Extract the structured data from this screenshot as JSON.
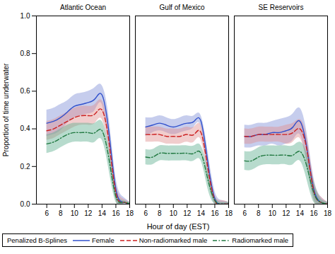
{
  "chart_data": {
    "type": "line",
    "xlabel": "Hour of day (EST)",
    "ylabel": "Proportion of time underwater",
    "legend_title": "Penalized B-Splines",
    "legend": "lower left",
    "grid": false,
    "xlim": [
      4.5,
      18.0
    ],
    "xticks": [
      6,
      8,
      10,
      12,
      14,
      16,
      18
    ],
    "ylim": [
      0.0,
      1.0
    ],
    "yticks": [
      {
        "value": 0.0,
        "label": "0.0"
      },
      {
        "value": 0.2,
        "label": "0.2"
      },
      {
        "value": 0.4,
        "label": "0.4"
      },
      {
        "value": 0.6,
        "label": "0.6"
      },
      {
        "value": 0.8,
        "label": "0.8"
      },
      {
        "value": 1.0,
        "label": "1.0"
      }
    ],
    "x": [
      6,
      7,
      8,
      9,
      10,
      11,
      12,
      13,
      14,
      15,
      16,
      17,
      18
    ],
    "panels": [
      {
        "title": "Atlantic Ocean",
        "series": [
          {
            "name": "Female",
            "color": "#3050cc",
            "band_color": "#8090d8",
            "line_style": "solid",
            "values": [
              0.43,
              0.44,
              0.46,
              0.49,
              0.52,
              0.53,
              0.54,
              0.56,
              0.58,
              0.38,
              0.08,
              0.01,
              0.0
            ],
            "upper": [
              0.5,
              0.51,
              0.53,
              0.55,
              0.58,
              0.59,
              0.6,
              0.62,
              0.63,
              0.46,
              0.14,
              0.04,
              0.01
            ],
            "lower": [
              0.36,
              0.37,
              0.39,
              0.43,
              0.46,
              0.47,
              0.48,
              0.5,
              0.53,
              0.3,
              0.03,
              0.0,
              0.0
            ]
          },
          {
            "name": "Non-radiomarked male",
            "color": "#cc2020",
            "band_color": "#e09090",
            "line_style": "dashed",
            "values": [
              0.39,
              0.4,
              0.42,
              0.44,
              0.46,
              0.47,
              0.47,
              0.48,
              0.5,
              0.33,
              0.06,
              0.01,
              0.0
            ],
            "upper": [
              0.44,
              0.45,
              0.47,
              0.49,
              0.51,
              0.52,
              0.52,
              0.53,
              0.55,
              0.39,
              0.11,
              0.03,
              0.01
            ],
            "lower": [
              0.34,
              0.35,
              0.37,
              0.39,
              0.41,
              0.42,
              0.42,
              0.43,
              0.45,
              0.27,
              0.02,
              0.0,
              0.0
            ]
          },
          {
            "name": "Radiomarked male",
            "color": "#207840",
            "band_color": "#60b090",
            "line_style": "dashdot",
            "values": [
              0.32,
              0.33,
              0.35,
              0.37,
              0.38,
              0.38,
              0.38,
              0.38,
              0.39,
              0.24,
              0.04,
              0.01,
              0.0
            ],
            "upper": [
              0.37,
              0.38,
              0.4,
              0.42,
              0.43,
              0.43,
              0.43,
              0.43,
              0.44,
              0.3,
              0.08,
              0.02,
              0.01
            ],
            "lower": [
              0.27,
              0.28,
              0.3,
              0.32,
              0.33,
              0.33,
              0.33,
              0.33,
              0.34,
              0.18,
              0.01,
              0.0,
              0.0
            ]
          }
        ]
      },
      {
        "title": "Gulf of Mexico",
        "series": [
          {
            "name": "Female",
            "color": "#3050cc",
            "band_color": "#8090d8",
            "line_style": "solid",
            "values": [
              0.41,
              0.42,
              0.43,
              0.42,
              0.41,
              0.42,
              0.43,
              0.44,
              0.44,
              0.22,
              0.03,
              0.0,
              0.0
            ],
            "upper": [
              0.46,
              0.46,
              0.47,
              0.46,
              0.45,
              0.46,
              0.47,
              0.47,
              0.47,
              0.28,
              0.07,
              0.02,
              0.01
            ],
            "lower": [
              0.36,
              0.38,
              0.39,
              0.38,
              0.37,
              0.38,
              0.39,
              0.41,
              0.41,
              0.16,
              0.0,
              0.0,
              0.0
            ]
          },
          {
            "name": "Non-radiomarked male",
            "color": "#cc2020",
            "band_color": "#e09090",
            "line_style": "dashed",
            "values": [
              0.37,
              0.37,
              0.37,
              0.36,
              0.36,
              0.36,
              0.37,
              0.37,
              0.38,
              0.19,
              0.02,
              0.0,
              0.0
            ],
            "upper": [
              0.41,
              0.41,
              0.41,
              0.4,
              0.4,
              0.4,
              0.41,
              0.41,
              0.42,
              0.24,
              0.05,
              0.02,
              0.01
            ],
            "lower": [
              0.33,
              0.33,
              0.33,
              0.32,
              0.32,
              0.32,
              0.33,
              0.33,
              0.34,
              0.14,
              0.0,
              0.0,
              0.0
            ]
          },
          {
            "name": "Radiomarked male",
            "color": "#207840",
            "band_color": "#60b090",
            "line_style": "dashdot",
            "values": [
              0.25,
              0.25,
              0.27,
              0.27,
              0.27,
              0.27,
              0.27,
              0.27,
              0.27,
              0.13,
              0.02,
              0.0,
              0.0
            ],
            "upper": [
              0.29,
              0.29,
              0.31,
              0.31,
              0.31,
              0.31,
              0.31,
              0.31,
              0.31,
              0.18,
              0.04,
              0.01,
              0.01
            ],
            "lower": [
              0.21,
              0.21,
              0.23,
              0.23,
              0.23,
              0.23,
              0.23,
              0.23,
              0.23,
              0.08,
              0.0,
              0.0,
              0.0
            ]
          }
        ]
      },
      {
        "title": "SE Reservoirs",
        "series": [
          {
            "name": "Female",
            "color": "#3050cc",
            "band_color": "#8090d8",
            "line_style": "solid",
            "values": [
              0.36,
              0.36,
              0.37,
              0.37,
              0.38,
              0.38,
              0.39,
              0.41,
              0.44,
              0.3,
              0.08,
              0.01,
              0.0
            ],
            "upper": [
              0.42,
              0.42,
              0.43,
              0.43,
              0.44,
              0.45,
              0.46,
              0.48,
              0.51,
              0.38,
              0.14,
              0.04,
              0.01
            ],
            "lower": [
              0.3,
              0.3,
              0.31,
              0.31,
              0.32,
              0.31,
              0.32,
              0.34,
              0.37,
              0.22,
              0.03,
              0.0,
              0.0
            ]
          },
          {
            "name": "Non-radiomarked male",
            "color": "#cc2020",
            "band_color": "#e09090",
            "line_style": "dashed",
            "values": [
              0.36,
              0.36,
              0.37,
              0.37,
              0.37,
              0.37,
              0.37,
              0.38,
              0.4,
              0.29,
              0.07,
              0.01,
              0.0
            ],
            "upper": [
              0.4,
              0.4,
              0.41,
              0.41,
              0.41,
              0.41,
              0.42,
              0.43,
              0.45,
              0.36,
              0.13,
              0.04,
              0.01
            ],
            "lower": [
              0.32,
              0.32,
              0.33,
              0.33,
              0.33,
              0.33,
              0.32,
              0.33,
              0.35,
              0.22,
              0.02,
              0.0,
              0.0
            ]
          },
          {
            "name": "Radiomarked male",
            "color": "#207840",
            "band_color": "#60b090",
            "line_style": "dashdot",
            "values": [
              0.23,
              0.23,
              0.25,
              0.26,
              0.26,
              0.26,
              0.26,
              0.26,
              0.28,
              0.2,
              0.06,
              0.01,
              0.0
            ],
            "upper": [
              0.28,
              0.28,
              0.3,
              0.31,
              0.31,
              0.31,
              0.31,
              0.31,
              0.33,
              0.27,
              0.12,
              0.03,
              0.01
            ],
            "lower": [
              0.18,
              0.18,
              0.2,
              0.21,
              0.21,
              0.21,
              0.21,
              0.21,
              0.23,
              0.13,
              0.01,
              0.0,
              0.0
            ]
          }
        ]
      }
    ]
  }
}
